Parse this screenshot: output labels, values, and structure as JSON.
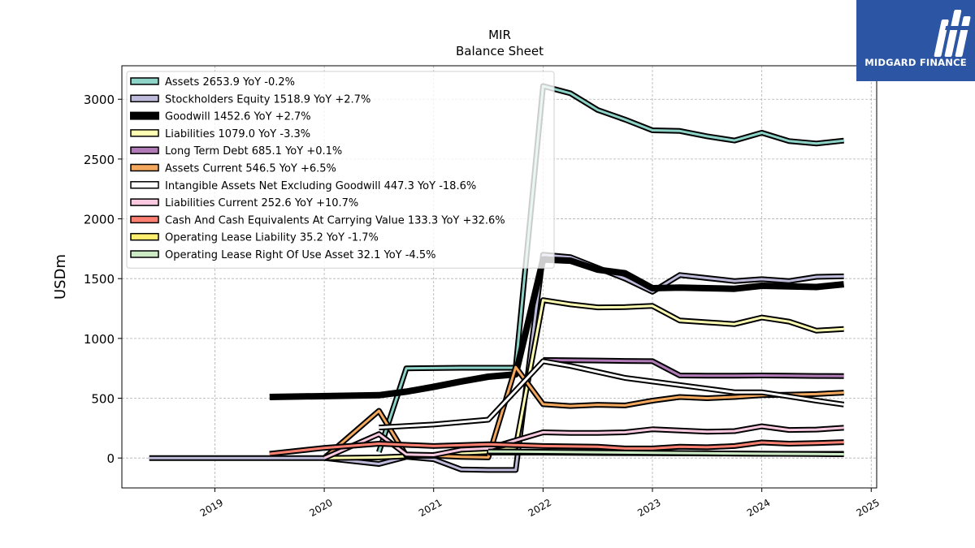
{
  "brand": {
    "name": "MIDGARD FINANCE",
    "bg_color": "#2c55a3"
  },
  "chart_data": {
    "type": "line",
    "title": "MIR",
    "subtitle": "Balance  Sheet",
    "xlabel": "",
    "ylabel": "USDm",
    "xlim": [
      2018.15,
      2025.05
    ],
    "ylim": [
      -250,
      3280
    ],
    "x_ticks": [
      2019,
      2020,
      2021,
      2022,
      2023,
      2024,
      2025
    ],
    "y_ticks": [
      0,
      500,
      1000,
      1500,
      2000,
      2500,
      3000
    ],
    "grid": true,
    "legend_position": "top-left",
    "series": [
      {
        "name": "Assets",
        "legend": "Assets  2653.9 YoY -0.2%",
        "color": "#8dd3c7",
        "width": 3,
        "x": [
          2020.5,
          2020.75,
          2021.25,
          2021.5,
          2021.75,
          2022.0,
          2022.25,
          2022.5,
          2022.75,
          2023.0,
          2023.25,
          2023.5,
          2023.75,
          2024.0,
          2024.25,
          2024.5,
          2024.75
        ],
        "y": [
          50,
          750,
          755,
          755,
          755,
          3110,
          3050,
          2910,
          2830,
          2740,
          2735,
          2690,
          2655,
          2720,
          2650,
          2630,
          2654
        ]
      },
      {
        "name": "Stockholders Equity",
        "legend": "Stockholders Equity  1518.9 YoY +2.7%",
        "color": "#bebada",
        "width": 3,
        "x": [
          2018.4,
          2020.0,
          2020.5,
          2020.75,
          2021.0,
          2021.25,
          2021.5,
          2021.75,
          2022.0,
          2022.25,
          2022.5,
          2022.75,
          2023.0,
          2023.25,
          2023.5,
          2023.75,
          2024.0,
          2024.25,
          2024.5,
          2024.75
        ],
        "y": [
          0,
          0,
          -50,
          10,
          -10,
          -95,
          -100,
          -100,
          1700,
          1680,
          1590,
          1500,
          1390,
          1530,
          1505,
          1480,
          1495,
          1480,
          1515,
          1519
        ]
      },
      {
        "name": "Goodwill",
        "legend": "Goodwill  1452.6 YoY +2.7%",
        "color": "#000000",
        "width": 8,
        "x": [
          2019.5,
          2020.5,
          2020.75,
          2021.0,
          2021.25,
          2021.5,
          2021.75,
          2022.0,
          2022.25,
          2022.5,
          2022.75,
          2023.0,
          2023.25,
          2023.5,
          2023.75,
          2024.0,
          2024.25,
          2024.5,
          2024.75
        ],
        "y": [
          510,
          525,
          555,
          595,
          640,
          680,
          700,
          1660,
          1650,
          1575,
          1545,
          1420,
          1425,
          1420,
          1415,
          1440,
          1435,
          1430,
          1453
        ]
      },
      {
        "name": "Liabilities",
        "legend": "Liabilities  1079.0 YoY -3.3%",
        "color": "#ffffb3",
        "width": 3,
        "x": [
          2020.0,
          2020.5,
          2020.75,
          2021.0,
          2021.25,
          2021.5,
          2021.75,
          2022.0,
          2022.25,
          2022.5,
          2022.75,
          2023.0,
          2023.25,
          2023.5,
          2023.75,
          2024.0,
          2024.25,
          2024.5,
          2024.75
        ],
        "y": [
          0,
          5,
          15,
          20,
          40,
          50,
          90,
          1320,
          1285,
          1260,
          1262,
          1272,
          1150,
          1135,
          1120,
          1175,
          1140,
          1065,
          1079
        ]
      },
      {
        "name": "Long Term Debt",
        "legend": "Long Term Debt  685.1 YoY +0.1%",
        "color": "#b07ab6",
        "width": 3,
        "x": [
          2022.0,
          2022.25,
          2022.5,
          2022.75,
          2023.0,
          2023.25,
          2023.5,
          2023.75,
          2024.0,
          2024.25,
          2024.5,
          2024.75
        ],
        "y": [
          820,
          818,
          815,
          812,
          810,
          690,
          688,
          688,
          690,
          688,
          686,
          685
        ]
      },
      {
        "name": "Assets Current",
        "legend": "Assets Current  546.5 YoY +6.5%",
        "color": "#f4a85d",
        "width": 3,
        "x": [
          2020.0,
          2020.5,
          2020.75,
          2021.0,
          2021.25,
          2021.5,
          2021.75,
          2022.0,
          2022.25,
          2022.5,
          2022.75,
          2023.0,
          2023.25,
          2023.5,
          2023.75,
          2024.0,
          2024.25,
          2024.5,
          2024.75
        ],
        "y": [
          0,
          395,
          20,
          20,
          10,
          5,
          760,
          450,
          435,
          445,
          440,
          480,
          510,
          500,
          510,
          525,
          530,
          535,
          547
        ]
      },
      {
        "name": "Intangible Assets Net Excluding Goodwill",
        "legend": "Intangible Assets Net Excluding Goodwill  447.3 YoY -18.6%",
        "color": "#ffffff",
        "width": 3,
        "x": [
          2020.5,
          2021.0,
          2021.5,
          2022.0,
          2022.25,
          2022.5,
          2022.75,
          2023.0,
          2023.25,
          2023.5,
          2023.75,
          2024.0,
          2024.25,
          2024.5,
          2024.75
        ],
        "y": [
          255,
          280,
          320,
          810,
          770,
          720,
          670,
          640,
          610,
          580,
          550,
          550,
          515,
          480,
          447
        ]
      },
      {
        "name": "Liabilities Current",
        "legend": "Liabilities Current  252.6 YoY +10.7%",
        "color": "#fbcae0",
        "width": 3,
        "x": [
          2020.0,
          2020.5,
          2020.75,
          2021.0,
          2021.25,
          2021.5,
          2022.0,
          2022.25,
          2022.5,
          2022.75,
          2023.0,
          2023.25,
          2023.5,
          2023.75,
          2024.0,
          2024.25,
          2024.5,
          2024.75
        ],
        "y": [
          0,
          200,
          30,
          25,
          70,
          80,
          215,
          210,
          210,
          215,
          240,
          230,
          220,
          225,
          265,
          235,
          238,
          253
        ]
      },
      {
        "name": "Cash And Cash Equivalents At Carrying Value",
        "legend": "Cash And Cash Equivalents At Carrying Value  133.3 YoY +32.6%",
        "color": "#fb8072",
        "width": 3,
        "x": [
          2019.5,
          2020.0,
          2020.5,
          2021.0,
          2021.5,
          2022.0,
          2022.5,
          2022.75,
          2023.0,
          2023.25,
          2023.5,
          2023.75,
          2024.0,
          2024.25,
          2024.5,
          2024.75
        ],
        "y": [
          35,
          85,
          120,
          100,
          115,
          100,
          95,
          80,
          80,
          95,
          90,
          100,
          130,
          120,
          125,
          133
        ]
      },
      {
        "name": "Operating Lease Liability",
        "legend": "Operating Lease Liability  35.2 YoY -1.7%",
        "color": "#ffed6f",
        "width": 3,
        "x": [
          2021.5,
          2022.0,
          2022.5,
          2023.0,
          2023.5,
          2024.0,
          2024.5,
          2024.75
        ],
        "y": [
          45,
          45,
          42,
          40,
          38,
          36,
          35,
          35
        ]
      },
      {
        "name": "Operating Lease Right Of Use Asset",
        "legend": "Operating Lease Right Of Use Asset  32.1 YoY -4.5%",
        "color": "#ccebc5",
        "width": 3,
        "x": [
          2021.5,
          2022.0,
          2022.5,
          2023.0,
          2023.5,
          2024.0,
          2024.5,
          2024.75
        ],
        "y": [
          55,
          52,
          48,
          44,
          40,
          36,
          33,
          32
        ]
      }
    ]
  }
}
